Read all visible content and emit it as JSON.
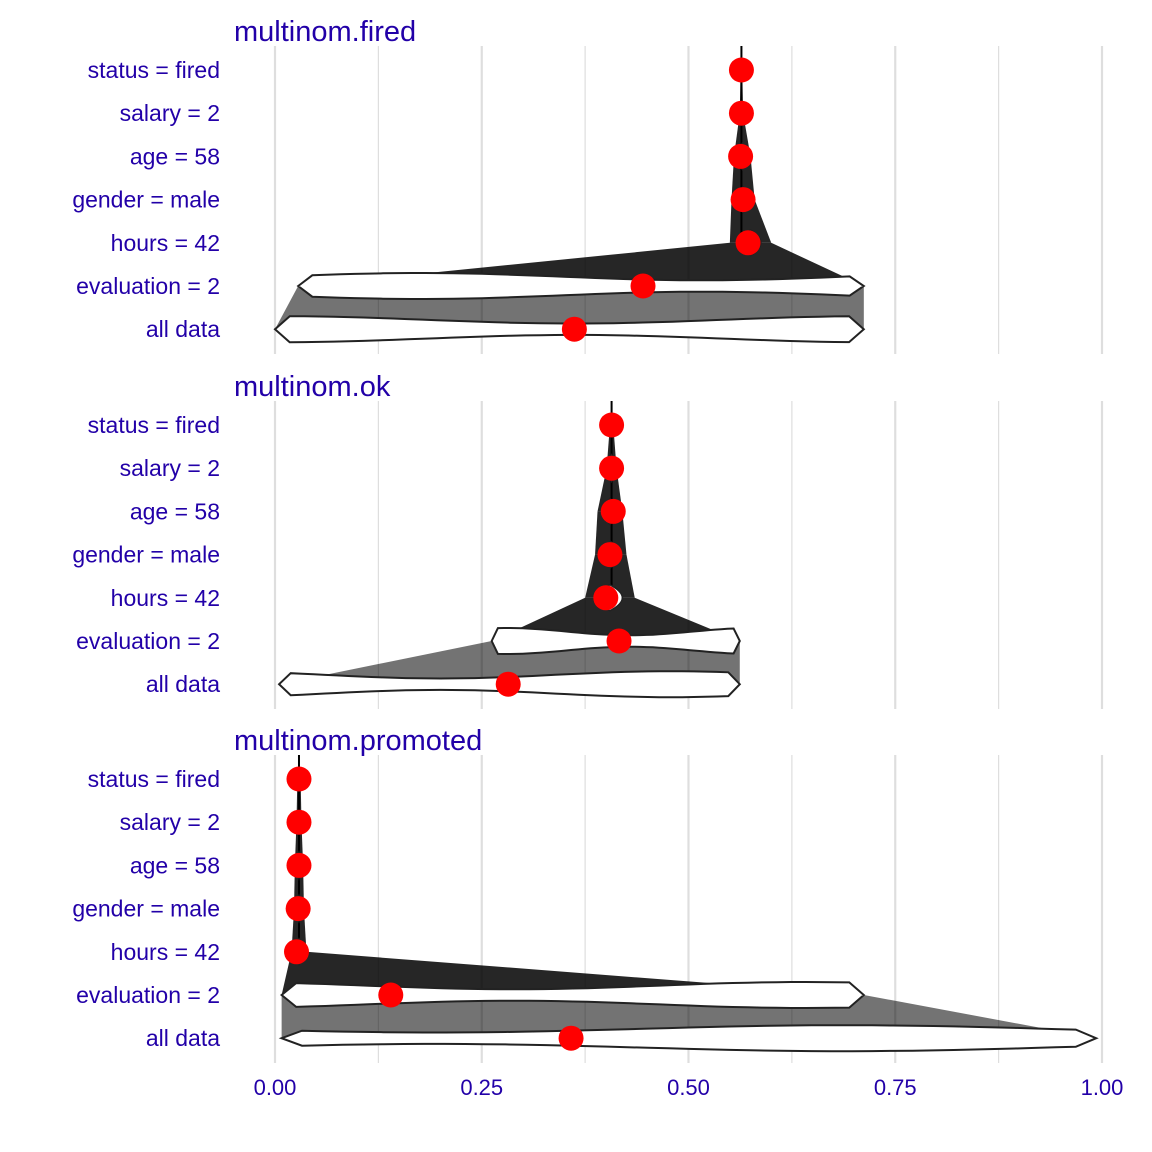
{
  "chart_data": {
    "type": "breakdown-violin",
    "x_ticks": [
      0,
      0.25,
      0.5,
      0.75,
      1.0
    ],
    "x_tick_labels": [
      "0.00",
      "0.25",
      "0.50",
      "0.75",
      "1.00"
    ],
    "xlim": [
      0,
      1.0
    ],
    "variables": [
      "status = fired",
      "salary = 2",
      "age = 58",
      "gender = male",
      "hours = 42",
      "evaluation = 2",
      "all data"
    ],
    "grid": true,
    "colors": {
      "text": "#2200a8",
      "grid": "#dedede",
      "point": "#ff0000",
      "outline": "#222222",
      "paths": "#000000"
    },
    "panels": [
      {
        "title": "multinom.fired",
        "means": [
          0.564,
          0.564,
          0.563,
          0.566,
          0.572,
          0.445,
          0.362
        ],
        "ranges": [
          [
            0.563,
            0.565
          ],
          [
            0.562,
            0.566
          ],
          [
            0.555,
            0.575
          ],
          [
            0.552,
            0.58
          ],
          [
            0.55,
            0.6
          ],
          [
            0.028,
            0.712
          ],
          [
            0.0,
            0.712
          ]
        ]
      },
      {
        "title": "multinom.ok",
        "means": [
          0.407,
          0.407,
          0.409,
          0.405,
          0.4,
          0.416,
          0.282
        ],
        "ranges": [
          [
            0.405,
            0.409
          ],
          [
            0.401,
            0.413
          ],
          [
            0.39,
            0.42
          ],
          [
            0.387,
            0.425
          ],
          [
            0.375,
            0.435
          ],
          [
            0.262,
            0.562
          ],
          [
            0.005,
            0.562
          ]
        ]
      },
      {
        "title": "multinom.promoted",
        "means": [
          0.029,
          0.029,
          0.029,
          0.028,
          0.026,
          0.14,
          0.358
        ],
        "ranges": [
          [
            0.027,
            0.031
          ],
          [
            0.026,
            0.032
          ],
          [
            0.024,
            0.034
          ],
          [
            0.023,
            0.035
          ],
          [
            0.02,
            0.038
          ],
          [
            0.008,
            0.712
          ],
          [
            0.008,
            0.993
          ]
        ]
      }
    ]
  }
}
